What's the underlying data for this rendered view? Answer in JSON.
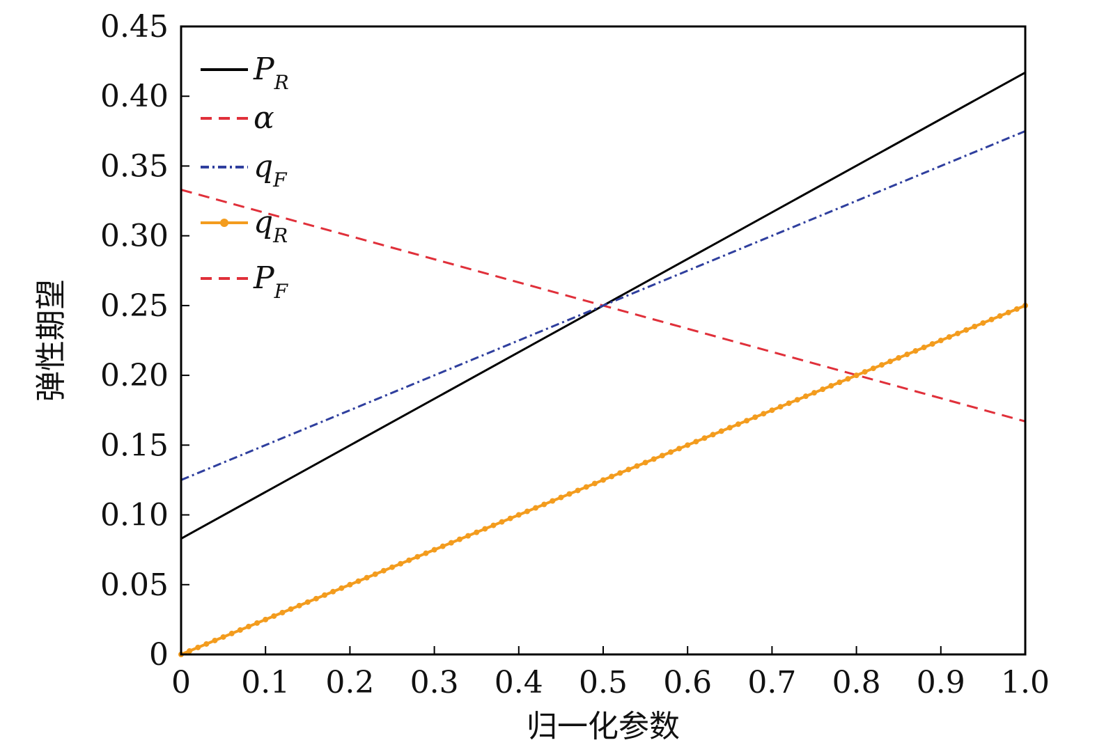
{
  "chart_data": {
    "type": "line",
    "xlabel": "归一化参数",
    "ylabel": "弹性期望",
    "xlim": [
      0,
      1.0
    ],
    "ylim": [
      0,
      0.45
    ],
    "x_ticks": [
      "0",
      "0.1",
      "0.2",
      "0.3",
      "0.4",
      "0.5",
      "0.6",
      "0.7",
      "0.8",
      "0.9",
      "1.0"
    ],
    "y_ticks": [
      "0",
      "0.05",
      "0.10",
      "0.15",
      "0.20",
      "0.25",
      "0.30",
      "0.35",
      "0.40",
      "0.45"
    ],
    "legend_position": "top-left",
    "grid": false,
    "series": [
      {
        "name": "P_R",
        "legend_main": "P",
        "legend_sub": "R",
        "color": "#000000",
        "style": "solid",
        "x": [
          0,
          0.5,
          1.0
        ],
        "values": [
          0.083,
          0.25,
          0.417
        ]
      },
      {
        "name": "α",
        "legend_main": "α",
        "legend_sub": "",
        "color": "#e0303a",
        "style": "dashed",
        "x": [
          0,
          0.5,
          1.0
        ],
        "values": [
          0.333,
          0.25,
          0.167
        ]
      },
      {
        "name": "q_F",
        "legend_main": "q",
        "legend_sub": "F",
        "color": "#2f3f9e",
        "style": "dashdot",
        "x": [
          0,
          0.5,
          1.0
        ],
        "values": [
          0.125,
          0.25,
          0.375
        ]
      },
      {
        "name": "q_R",
        "legend_main": "q",
        "legend_sub": "R",
        "color": "#f39c1e",
        "style": "solid-dots",
        "x": [
          0,
          0.5,
          1.0
        ],
        "values": [
          0,
          0.125,
          0.25
        ]
      },
      {
        "name": "P_F",
        "legend_main": "P",
        "legend_sub": "F",
        "color": "#e0303a",
        "style": "dashed",
        "x": [],
        "values": []
      }
    ]
  }
}
